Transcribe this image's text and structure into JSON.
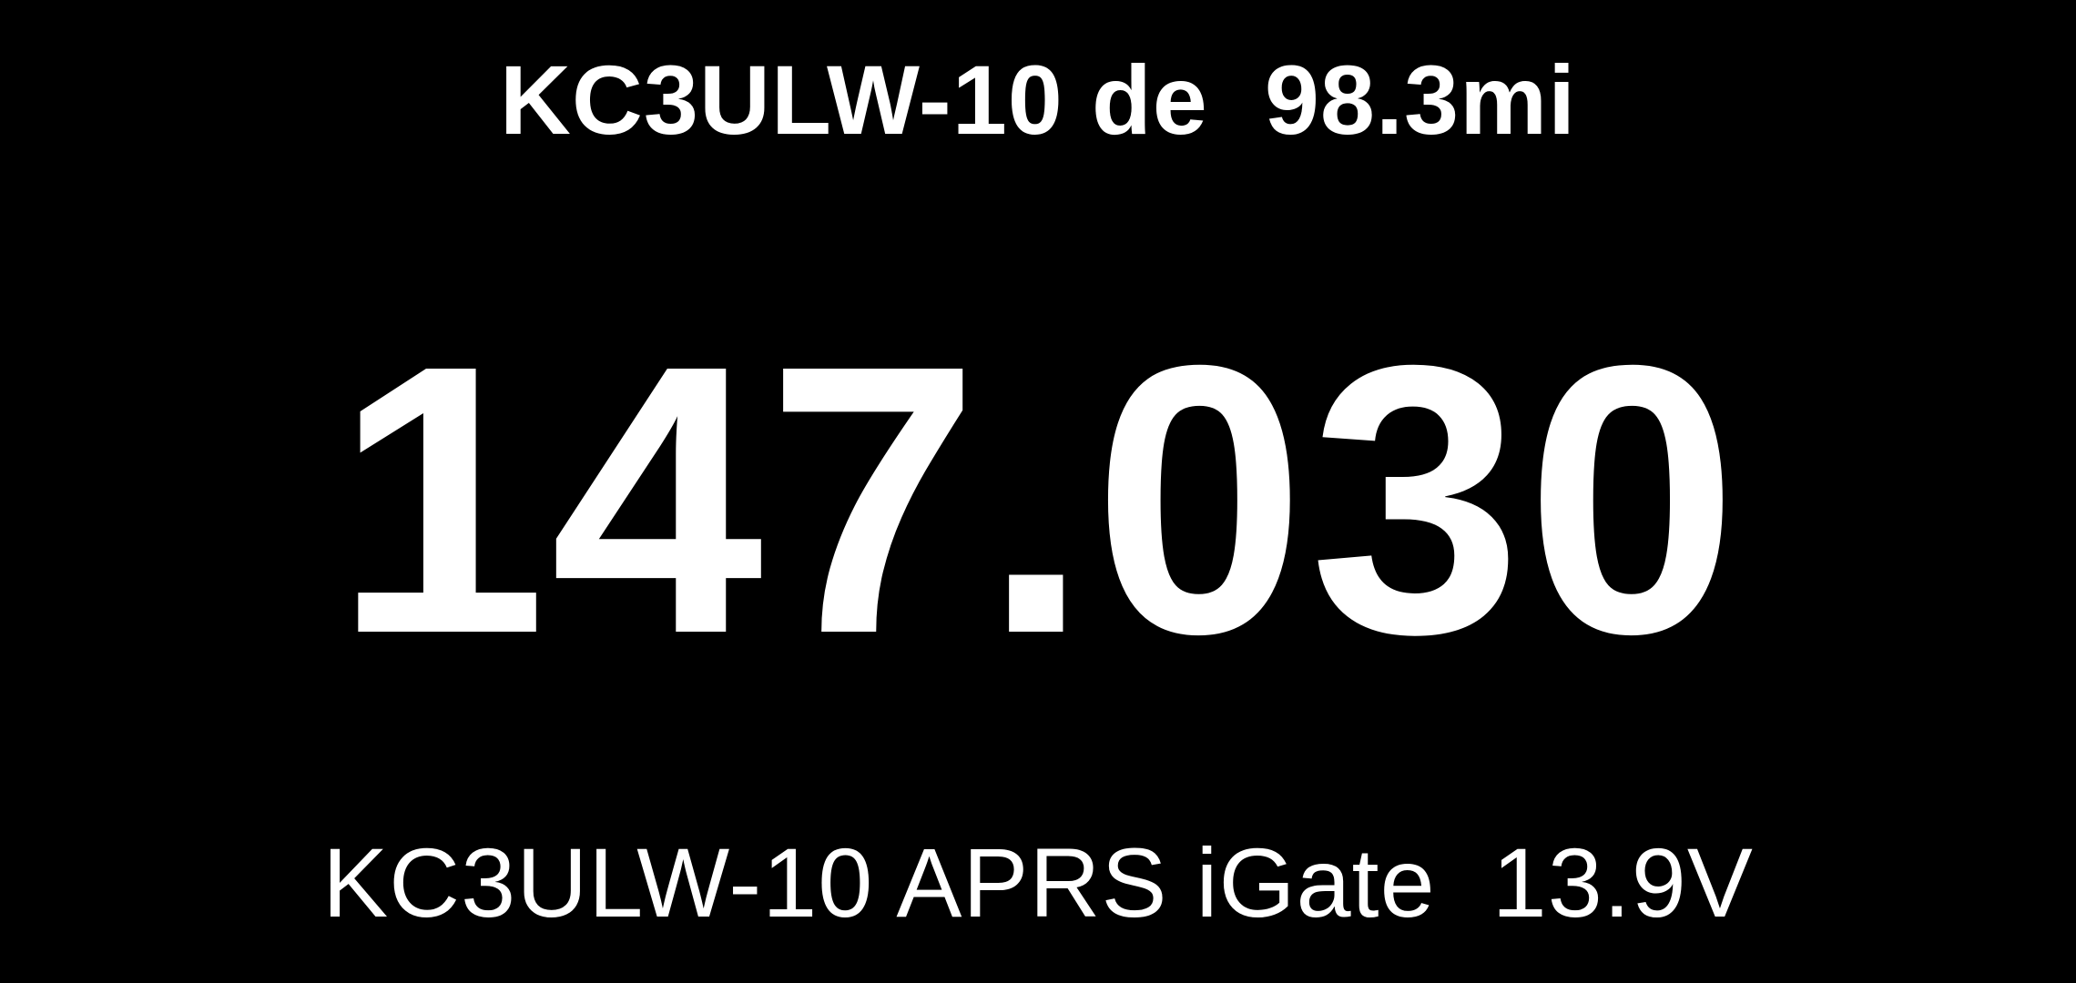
{
  "display": {
    "header": "KC3ULW-10 de  98.3mi",
    "frequency": "147.030",
    "footer": "KC3ULW-10 APRS iGate  13.9V"
  },
  "colors": {
    "background": "#000000",
    "text": "#ffffff"
  }
}
